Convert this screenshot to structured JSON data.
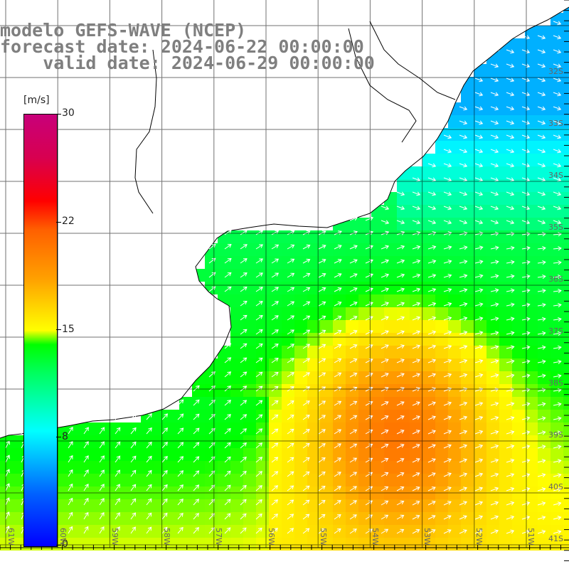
{
  "title": {
    "line1": "modelo GEFS-WAVE (NCEP)",
    "line2": "forecast date: 2024-06-22 00:00:00",
    "line3": "    valid date: 2024-06-29 00:00:00"
  },
  "colorbar": {
    "unit": "[m/s]",
    "ticks": [
      "30",
      "22",
      "15",
      "8",
      "0"
    ],
    "tick_values": [
      30,
      22,
      15,
      8,
      0
    ],
    "range": [
      0,
      30
    ],
    "colors": [
      "#0000ff",
      "#00ffff",
      "#00ff00",
      "#ffff00",
      "#ffa000",
      "#ff0000",
      "#c8007a"
    ]
  },
  "map": {
    "lat_labels": [
      "32S",
      "33S",
      "34S",
      "35S",
      "36S",
      "37S",
      "38S",
      "39S",
      "40S",
      "41S"
    ],
    "lon_labels": [
      "61W",
      "60W",
      "59W",
      "58W",
      "57W",
      "56W",
      "55W",
      "54W",
      "53W",
      "52W",
      "51W"
    ],
    "lat_range": [
      -41.3,
      -31.0
    ],
    "lon_range": [
      -61.2,
      -50.5
    ],
    "land_color": "#ffffff",
    "coast_color": "#000000",
    "grid_color": "#000000",
    "arrow_color": "#ffffff"
  }
}
